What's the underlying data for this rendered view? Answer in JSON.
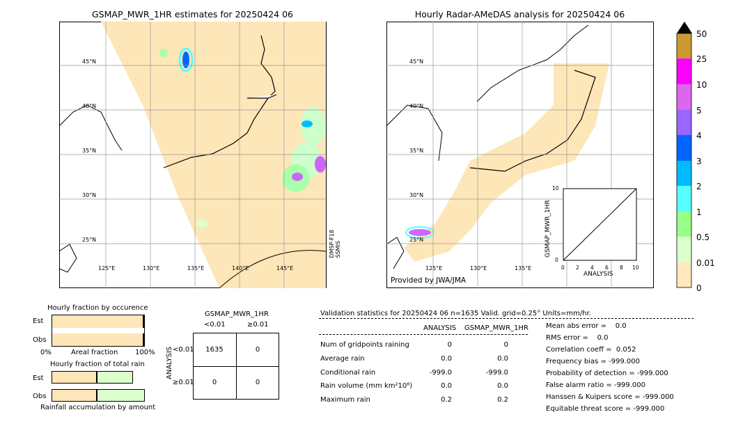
{
  "left_map": {
    "title": "GSMAP_MWR_1HR estimates for 20250424 06",
    "lat_labels": [
      "45°N",
      "40°N",
      "35°N",
      "30°N",
      "25°N"
    ],
    "lon_labels": [
      "125°E",
      "130°E",
      "135°E",
      "140°E",
      "145°E"
    ],
    "sensor_label": "DMSP-F18\nSSMIS"
  },
  "right_map": {
    "title": "Hourly Radar-AMeDAS analysis for 20250424 06",
    "lat_labels": [
      "45°N",
      "40°N",
      "35°N",
      "30°N",
      "25°N"
    ],
    "lon_labels": [
      "125°E",
      "130°E",
      "135°E"
    ],
    "provider": "Provided by JWA/JMA",
    "inset": {
      "ylabel": "GSMAP_MWR_1HR",
      "xlabel": "ANALYSIS",
      "ticks": [
        "0",
        "2",
        "4",
        "6",
        "8",
        "10"
      ]
    }
  },
  "colorbar": {
    "labels": [
      "50",
      "25",
      "10",
      "5",
      "4",
      "3",
      "2",
      "1",
      "0.5",
      "0.01",
      "0"
    ],
    "colors": [
      "#000000",
      "#cc9933",
      "#ff00ff",
      "#dd66ee",
      "#9966ff",
      "#0066ff",
      "#00bbff",
      "#55ffff",
      "#99ff88",
      "#ddffcc",
      "#ffe8bb"
    ]
  },
  "fraction_panel": {
    "title_occurrence": "Hourly fraction by occurence",
    "title_total": "Hourly fraction of total rain",
    "est_label": "Est",
    "obs_label": "Obs",
    "axis_left": "0%",
    "axis_mid": "Areal fraction",
    "axis_right": "100%",
    "footer": "Rainfall accumulation by amount"
  },
  "contingency": {
    "title": "GSMAP_MWR_1HR",
    "col_headers": [
      "<0.01",
      "≥0.01"
    ],
    "row_headers": [
      "<0.01",
      "≥0.01"
    ],
    "side_label": "ANALYSIS",
    "cells": [
      [
        "1635",
        "0"
      ],
      [
        "0",
        "0"
      ]
    ]
  },
  "validation": {
    "header": "Validation statistics for 20250424 06  n=1635 Valid. grid=0.25° Units=mm/hr.",
    "col_analysis": "ANALYSIS",
    "col_gsmap": "GSMAP_MWR_1HR",
    "rows": [
      {
        "label": "Num of gridpoints raining",
        "a": "0",
        "g": "0"
      },
      {
        "label": "Average rain",
        "a": "0.0",
        "g": "0.0"
      },
      {
        "label": "Conditional rain",
        "a": "-999.0",
        "g": "-999.0"
      },
      {
        "label": "Rain volume (mm km²10⁶)",
        "a": "0.0",
        "g": "0.0"
      },
      {
        "label": "Maximum rain",
        "a": "0.2",
        "g": "0.2"
      }
    ],
    "scores": [
      "Mean abs error =    0.0",
      "RMS error =    0.0",
      "Correlation coeff =  0.052",
      "Frequency bias = -999.000",
      "Probability of detection = -999.000",
      "False alarm ratio = -999.000",
      "Hanssen & Kuipers score = -999.000",
      "Equitable threat score = -999.000"
    ]
  },
  "chart_data": {
    "type": "table",
    "title": "Validation statistics for 20250424 06",
    "columns": [
      "ANALYSIS",
      "GSMAP_MWR_1HR"
    ],
    "rows": [
      [
        "Num of gridpoints raining",
        0,
        0
      ],
      [
        "Average rain",
        0.0,
        0.0
      ],
      [
        "Conditional rain",
        -999.0,
        -999.0
      ],
      [
        "Rain volume (mm km²10⁶)",
        0.0,
        0.0
      ],
      [
        "Maximum rain",
        0.2,
        0.2
      ]
    ],
    "contingency": [
      [
        1635,
        0
      ],
      [
        0,
        0
      ]
    ],
    "fraction_occurrence": {
      "Est": 0.98,
      "Obs": 0.98
    },
    "fraction_total_rain": {
      "Est": 0.48,
      "Obs": 0.48
    }
  }
}
